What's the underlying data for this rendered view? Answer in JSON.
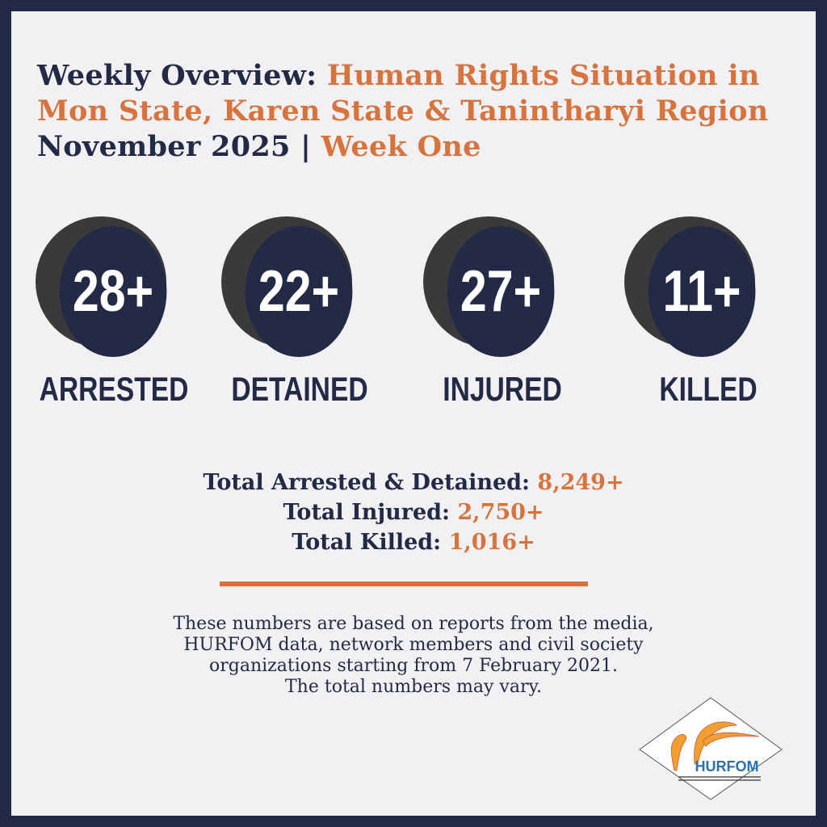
{
  "header": {
    "title_prefix": "Weekly Overview:",
    "title_highlight_line1": "Human Rights Situation in",
    "title_highlight_line2": "Mon State, Karen State & Tanintharyi Region",
    "period": "November 2025 |",
    "week": "Week One"
  },
  "stats": [
    {
      "value": "28+",
      "label": "ARRESTED"
    },
    {
      "value": "22+",
      "label": "DETAINED"
    },
    {
      "value": "27+",
      "label": "INJURED"
    },
    {
      "value": "11+",
      "label": "KILLED"
    }
  ],
  "totals": [
    {
      "label": "Total Arrested & Detained:",
      "value": "8,249+"
    },
    {
      "label": "Total Injured:",
      "value": "2,750+"
    },
    {
      "label": "Total Killed:",
      "value": "1,016+"
    }
  ],
  "note": {
    "lines": [
      "These numbers are based on reports from the media,",
      "HURFOM data, network members and civil society",
      "organizations starting from 7 February 2021.",
      "The total numbers may vary."
    ]
  },
  "logo": {
    "text": "HURFOM"
  },
  "colors": {
    "navy": "#232a45",
    "orange": "#d9733d",
    "background": "#f1f1f4"
  }
}
